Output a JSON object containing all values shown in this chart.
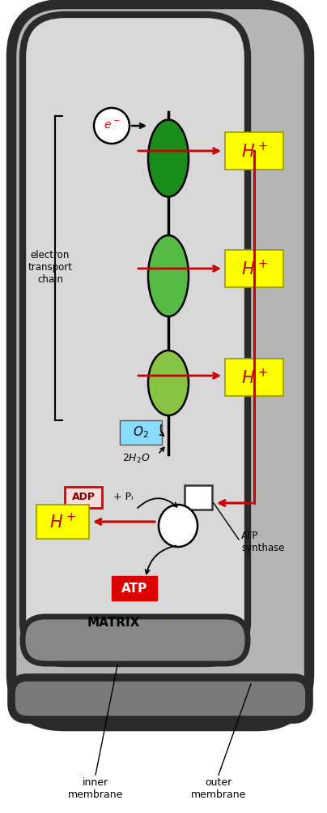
{
  "bg_outer": "#ffffff",
  "bg_gray": "#c0c0c0",
  "bg_matrix": "#d0d0d0",
  "dark_border": "#404040",
  "complex_colors": [
    "#1a8c1a",
    "#55bb44",
    "#88c444"
  ],
  "yellow_box": "#ffff00",
  "cyan_box": "#88ddff",
  "red_box": "#dd0000",
  "arrow_red": "#cc0000",
  "arrow_black": "#000000",
  "labels": {
    "electron": "e⁻",
    "chain": "electron\ntransport\nchain",
    "hplus": "H⁺",
    "o2": "O₂",
    "water": "2H₂O",
    "adp": "ADP",
    "pi": "+ Pᵢ",
    "atp": "ATP",
    "matrix": "MATRIX",
    "atp_synthase": "ATP\nsynthase",
    "inner_mem": "inner\nmembrane",
    "outer_mem": "outer\nmembrane"
  }
}
